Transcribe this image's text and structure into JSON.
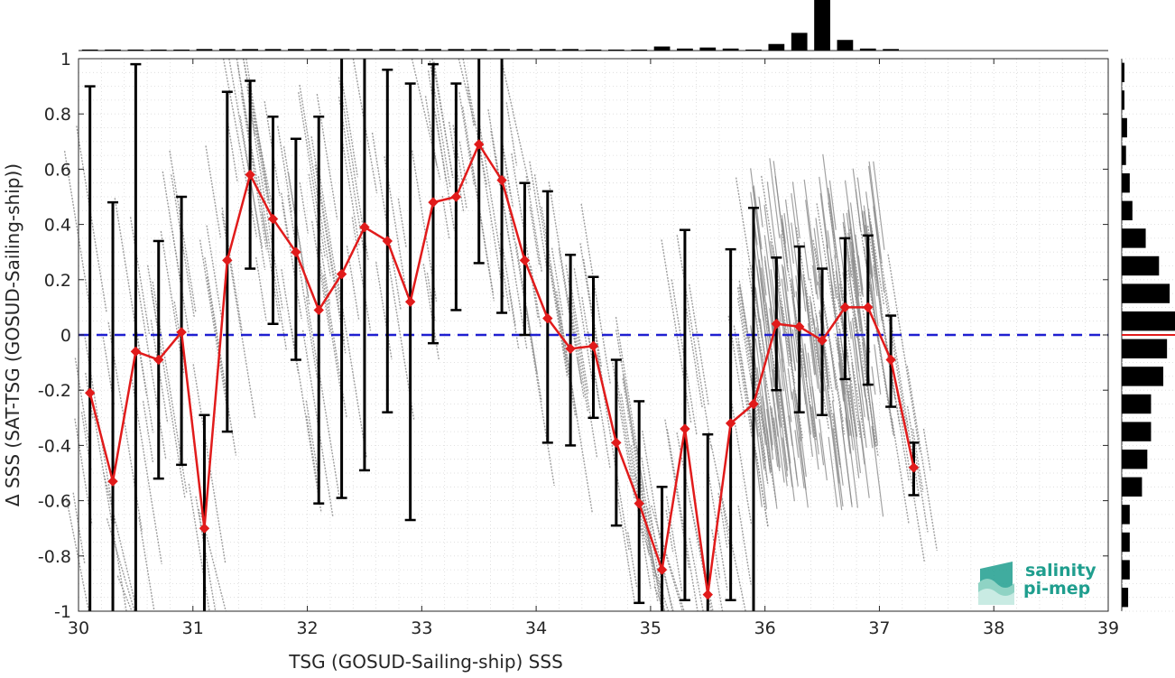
{
  "chart_data": {
    "type": "scatter",
    "title": "",
    "xlabel": "TSG (GOSUD-Sailing-ship) SSS",
    "ylabel": "Δ SSS (SAT-TSG (GOSUD-Sailing-ship))",
    "xlim": [
      30,
      39
    ],
    "ylim": [
      -1,
      1
    ],
    "x_ticks": [
      "30",
      "31",
      "32",
      "33",
      "34",
      "35",
      "36",
      "37",
      "38",
      "39"
    ],
    "y_ticks": [
      "-1",
      "-0.8",
      "-0.6",
      "-0.4",
      "-0.2",
      "0",
      "0.2",
      "0.4",
      "0.6",
      "0.8",
      "1"
    ],
    "grid": true,
    "reference_line": {
      "y": 0,
      "color": "#1f1fd0",
      "style": "dashed"
    },
    "binned_mean": {
      "color": "#e11b1b",
      "marker": "diamond",
      "x": [
        30.1,
        30.3,
        30.5,
        30.7,
        30.9,
        31.1,
        31.3,
        31.5,
        31.7,
        31.9,
        32.1,
        32.3,
        32.5,
        32.7,
        32.9,
        33.1,
        33.3,
        33.5,
        33.7,
        33.9,
        34.1,
        34.3,
        34.5,
        34.7,
        34.9,
        35.1,
        35.3,
        35.5,
        35.7,
        35.9,
        36.1,
        36.3,
        36.5,
        36.7,
        36.9,
        37.1,
        37.3
      ],
      "mean": [
        -0.21,
        -0.53,
        -0.06,
        -0.09,
        0.01,
        -0.7,
        0.27,
        0.58,
        0.42,
        0.3,
        0.09,
        0.22,
        0.39,
        0.34,
        0.12,
        0.48,
        0.5,
        0.69,
        0.56,
        0.27,
        0.06,
        -0.05,
        -0.04,
        -0.39,
        -0.61,
        -0.85,
        -0.34,
        -0.94,
        -0.32,
        -0.25,
        0.04,
        0.03,
        -0.02,
        0.1,
        0.1,
        -0.09,
        -0.48
      ],
      "upper": [
        0.9,
        0.48,
        0.98,
        0.34,
        0.5,
        -0.29,
        0.88,
        0.92,
        0.79,
        0.71,
        0.79,
        1.0,
        1.0,
        0.96,
        0.91,
        0.98,
        0.91,
        1.0,
        1.0,
        0.55,
        0.52,
        0.29,
        0.21,
        -0.09,
        -0.24,
        -0.55,
        0.38,
        -0.36,
        0.31,
        0.46,
        0.28,
        0.32,
        0.24,
        0.35,
        0.36,
        0.07,
        -0.39
      ],
      "lower": [
        -1.0,
        -1.0,
        -1.0,
        -0.52,
        -0.47,
        -1.0,
        -0.35,
        0.24,
        0.04,
        -0.09,
        -0.61,
        -0.59,
        -0.49,
        -0.28,
        -0.67,
        -0.03,
        0.09,
        0.26,
        0.08,
        0.0,
        -0.39,
        -0.4,
        -0.3,
        -0.69,
        -0.97,
        -1.0,
        -0.96,
        -1.0,
        -0.96,
        -1.0,
        -0.2,
        -0.28,
        -0.29,
        -0.16,
        -0.18,
        -0.26,
        -0.58
      ]
    },
    "scatter_color": "#8c8c8c",
    "top_histogram": {
      "bin_centers": [
        30.1,
        30.3,
        30.5,
        30.7,
        30.9,
        31.1,
        31.3,
        31.5,
        31.7,
        31.9,
        32.1,
        32.3,
        32.5,
        32.7,
        32.9,
        33.1,
        33.3,
        33.5,
        33.7,
        33.9,
        34.1,
        34.3,
        34.5,
        34.7,
        34.9,
        35.1,
        35.3,
        35.5,
        35.7,
        35.9,
        36.1,
        36.3,
        36.5,
        36.7,
        36.9,
        37.1,
        37.3
      ],
      "relative_counts": [
        0.02,
        0.02,
        0.02,
        0.02,
        0.02,
        0.03,
        0.03,
        0.03,
        0.03,
        0.03,
        0.03,
        0.03,
        0.03,
        0.03,
        0.03,
        0.03,
        0.03,
        0.03,
        0.03,
        0.03,
        0.03,
        0.03,
        0.02,
        0.02,
        0.02,
        0.08,
        0.04,
        0.06,
        0.04,
        0.02,
        0.13,
        0.35,
        1.0,
        0.21,
        0.04,
        0.03,
        0.0
      ]
    },
    "right_histogram": {
      "bin_centers": [
        0.95,
        0.85,
        0.75,
        0.65,
        0.55,
        0.45,
        0.35,
        0.25,
        0.15,
        0.05,
        -0.05,
        -0.15,
        -0.25,
        -0.35,
        -0.45,
        -0.55,
        -0.65,
        -0.75,
        -0.85,
        -0.95
      ],
      "relative_counts": [
        0.05,
        0.05,
        0.1,
        0.08,
        0.15,
        0.2,
        0.45,
        0.7,
        0.9,
        1.0,
        0.85,
        0.78,
        0.55,
        0.55,
        0.48,
        0.38,
        0.15,
        0.15,
        0.15,
        0.12
      ],
      "median_line": {
        "y": 0,
        "color": "#e11b1b"
      }
    }
  },
  "logo": {
    "line1": "salinity",
    "line2": "pi-mep",
    "text_color": "#1f9e8e"
  }
}
